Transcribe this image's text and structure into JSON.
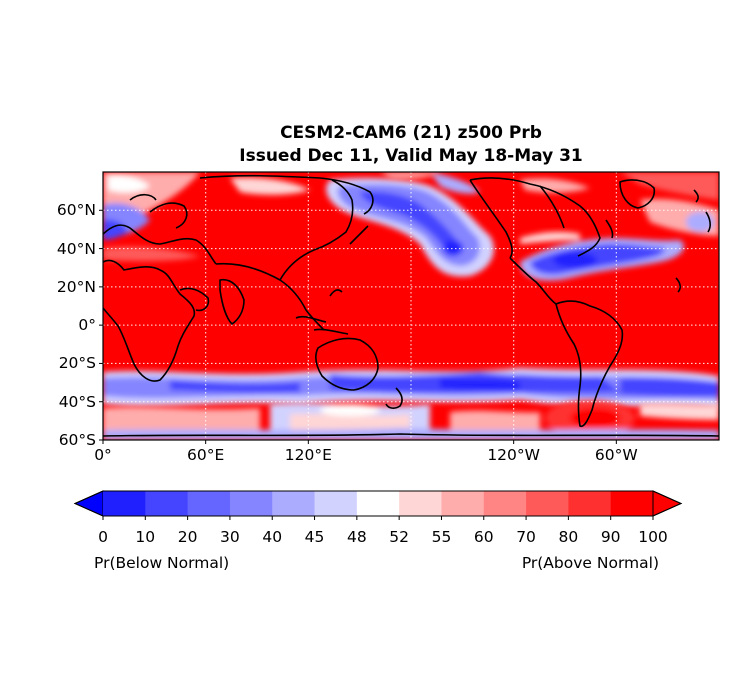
{
  "title_line1": "CESM2-CAM6 (21) z500 Prb",
  "title_line2": "Issued Dec 11, Valid May 18-May 31",
  "lat_labels": [
    "60°N",
    "40°N",
    "20°N",
    "0°",
    "20°S",
    "40°S",
    "60°S"
  ],
  "lat_values": [
    60,
    40,
    20,
    0,
    -20,
    -40,
    -60
  ],
  "lon_labels": [
    "0°",
    "60°E",
    "120°E",
    "120°W",
    "60°W"
  ],
  "lon_values": [
    0,
    60,
    120,
    240,
    300
  ],
  "map_extent": {
    "lon": [
      0,
      360
    ],
    "lat": [
      -60,
      80
    ]
  },
  "gridlines": "dotted white",
  "colorbar": {
    "ticks": [
      "0",
      "10",
      "20",
      "30",
      "40",
      "45",
      "48",
      "52",
      "55",
      "60",
      "70",
      "80",
      "90",
      "100"
    ],
    "colors": [
      "#2020ff",
      "#4545ff",
      "#6565ff",
      "#8585ff",
      "#acacff",
      "#d2d2ff",
      "#ffffff",
      "#ffd6d6",
      "#ffacac",
      "#ff8585",
      "#ff5a5a",
      "#ff3030",
      "#ff0000"
    ],
    "extend": "both",
    "under_color": "#0000ff",
    "over_color": "#ff0000",
    "left_label": "Pr(Below Normal)",
    "right_label": "Pr(Above Normal)"
  }
}
